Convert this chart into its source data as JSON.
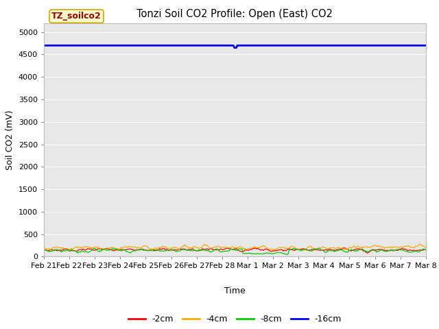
{
  "title": "Tonzi Soil CO2 Profile: Open (East) CO2",
  "xlabel": "Time",
  "ylabel": "Soil CO2 (mV)",
  "ylim": [
    0,
    5200
  ],
  "yticks": [
    0,
    500,
    1000,
    1500,
    2000,
    2500,
    3000,
    3500,
    4000,
    4500,
    5000
  ],
  "bg_color": "#e8e8e8",
  "fig_color": "#ffffff",
  "legend_label": "TZ_soilco2",
  "legend_box_color": "#ffffcc",
  "legend_text_color": "#990000",
  "line_colors": {
    "-2cm": "#ff0000",
    "-4cm": "#ffaa00",
    "-8cm": "#00cc00",
    "-16cm": "#0000ff"
  },
  "n_points": 400,
  "blue_line_value": 4700,
  "x_tick_labels": [
    "Feb 21",
    "Feb 22",
    "Feb 23",
    "Feb 24",
    "Feb 25",
    "Feb 26",
    "Feb 27",
    "Feb 28",
    "Mar 1",
    "Mar 2",
    "Mar 3",
    "Mar 4",
    "Mar 5",
    "Mar 6",
    "Mar 7",
    "Mar 8"
  ],
  "seed": 42
}
